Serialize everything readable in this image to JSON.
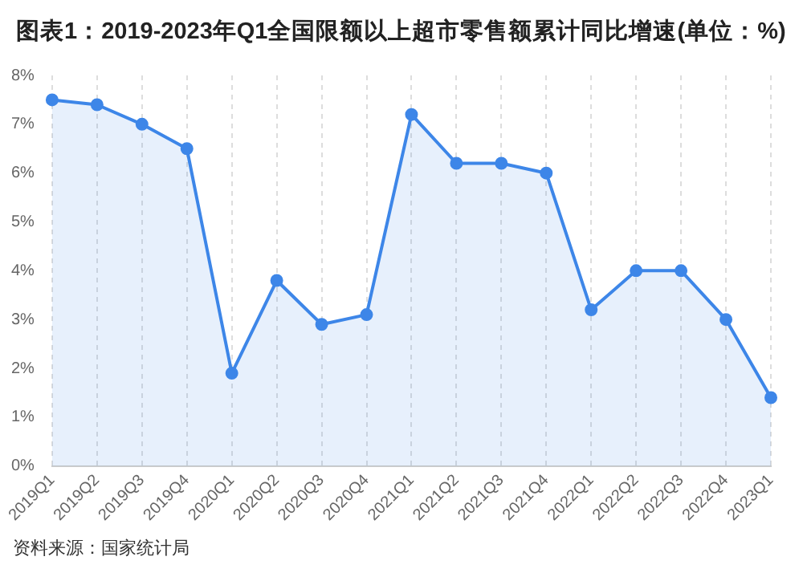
{
  "chart_data": {
    "type": "area",
    "title": "图表1：2019-2023年Q1全国限额以上超市零售额累计同比增速(单位：%)",
    "categories": [
      "2019Q1",
      "2019Q2",
      "2019Q3",
      "2019Q4",
      "2020Q1",
      "2020Q2",
      "2020Q3",
      "2020Q4",
      "2021Q1",
      "2021Q2",
      "2021Q3",
      "2021Q4",
      "2022Q1",
      "2022Q2",
      "2022Q3",
      "2022Q4",
      "2023Q1"
    ],
    "series": [
      {
        "color": "#3d86e8",
        "values": [
          7.5,
          7.4,
          7.0,
          6.5,
          1.9,
          3.8,
          2.9,
          3.1,
          7.2,
          6.2,
          6.2,
          6.0,
          3.2,
          4.0,
          4.0,
          3.0,
          1.4
        ]
      }
    ],
    "ylim": [
      0,
      8
    ],
    "yticks": [
      {
        "value": 0,
        "label": "0%"
      },
      {
        "value": 1,
        "label": "1%"
      },
      {
        "value": 2,
        "label": "2%"
      },
      {
        "value": 3,
        "label": "3%"
      },
      {
        "value": 4,
        "label": "4%"
      },
      {
        "value": 5,
        "label": "5%"
      },
      {
        "value": 6,
        "label": "6%"
      },
      {
        "value": 7,
        "label": "7%"
      },
      {
        "value": 8,
        "label": "8%"
      }
    ],
    "grid": "x",
    "marker": "circle",
    "line_style": "solid",
    "legend": false,
    "annotations": [
      "资料来源：国家统计局"
    ]
  }
}
